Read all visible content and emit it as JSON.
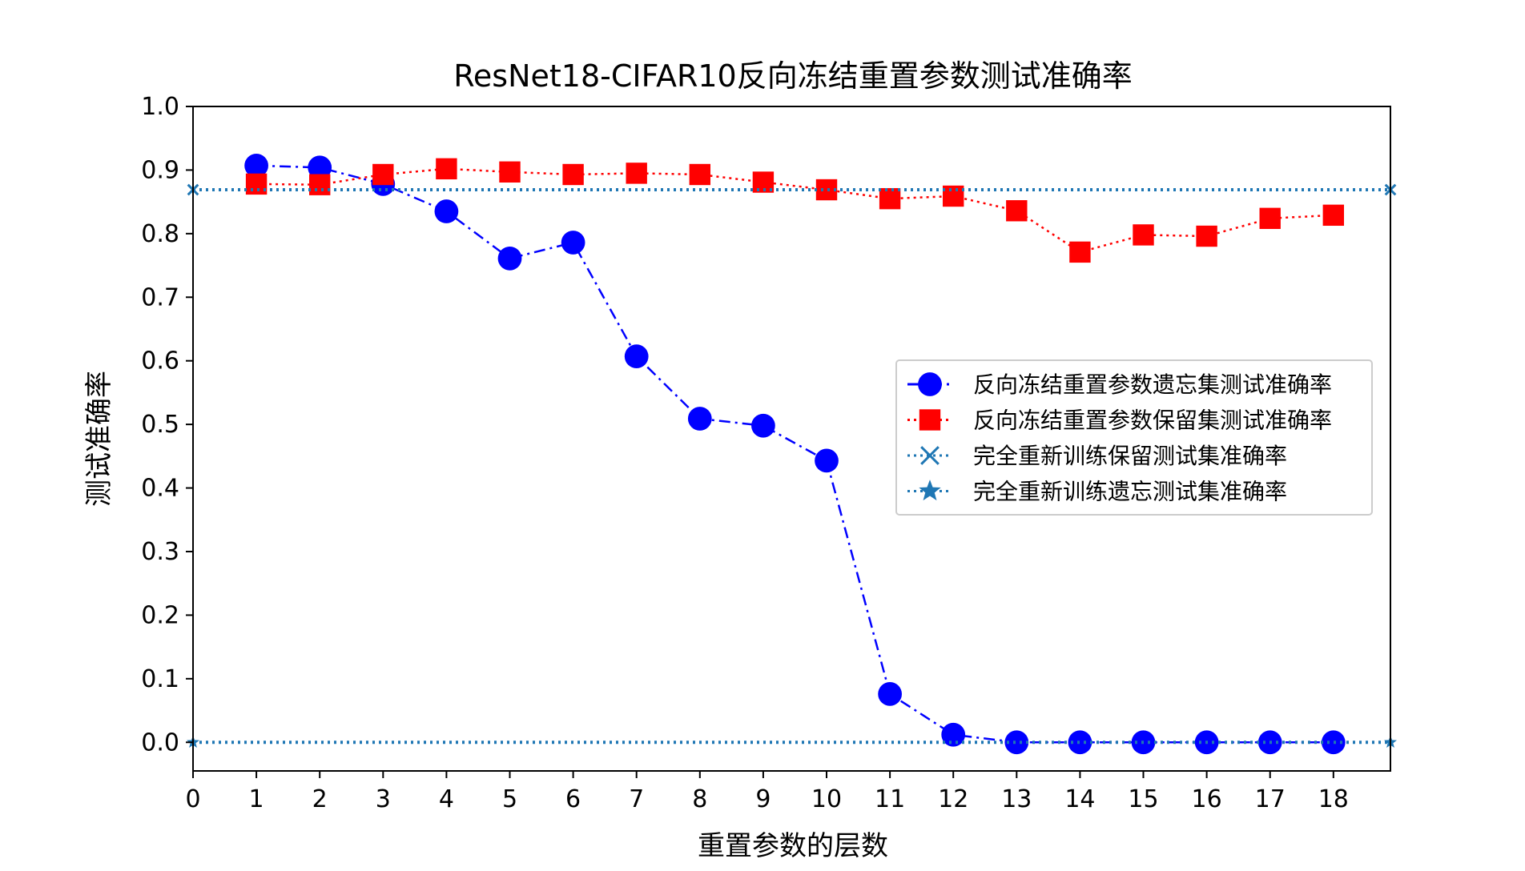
{
  "chart_data": {
    "type": "line",
    "title": "ResNet18-CIFAR10反向冻结重置参数测试准确率",
    "xlabel": "重置参数的层数",
    "ylabel": "测试准确率",
    "xlim": [
      0,
      18.9
    ],
    "ylim": [
      -0.045,
      1.0
    ],
    "x_ticks": [
      0,
      1,
      2,
      3,
      4,
      5,
      6,
      7,
      8,
      9,
      10,
      11,
      12,
      13,
      14,
      15,
      16,
      17,
      18
    ],
    "y_ticks": [
      0.0,
      0.1,
      0.2,
      0.3,
      0.4,
      0.5,
      0.6,
      0.7,
      0.8,
      0.9,
      1.0
    ],
    "y_tick_labels": [
      "0.0",
      "0.1",
      "0.2",
      "0.3",
      "0.4",
      "0.5",
      "0.6",
      "0.7",
      "0.8",
      "0.9",
      "1.0"
    ],
    "legend_position": "center-right",
    "grid": false,
    "series": [
      {
        "name": "反向冻结重置参数遗忘集测试准确率",
        "color": "#0000ff",
        "marker": "circle",
        "line_style": "dashdot",
        "x": [
          1,
          2,
          3,
          4,
          5,
          6,
          7,
          8,
          9,
          10,
          11,
          12,
          13,
          14,
          15,
          16,
          17,
          18
        ],
        "values": [
          0.907,
          0.904,
          0.878,
          0.835,
          0.761,
          0.786,
          0.607,
          0.509,
          0.498,
          0.443,
          0.076,
          0.012,
          0.0,
          0.0,
          0.0,
          0.0,
          0.0,
          0.0
        ]
      },
      {
        "name": "反向冻结重置参数保留集测试准确率",
        "color": "#ff0000",
        "marker": "square",
        "line_style": "dotted",
        "x": [
          1,
          2,
          3,
          4,
          5,
          6,
          7,
          8,
          9,
          10,
          11,
          12,
          13,
          14,
          15,
          16,
          17,
          18
        ],
        "values": [
          0.878,
          0.877,
          0.893,
          0.902,
          0.897,
          0.893,
          0.895,
          0.893,
          0.881,
          0.869,
          0.855,
          0.859,
          0.836,
          0.771,
          0.798,
          0.796,
          0.824,
          0.829
        ]
      },
      {
        "name": "完全重新训练保留测试集准确率",
        "color": "#1f77b4",
        "marker": "x",
        "line_style": "dotted",
        "x": [
          0,
          18.9
        ],
        "values": [
          0.869,
          0.869
        ]
      },
      {
        "name": "完全重新训练遗忘测试集准确率",
        "color": "#1f77b4",
        "marker": "star",
        "line_style": "dotted",
        "x": [
          0,
          18.9
        ],
        "values": [
          0.0,
          0.0
        ]
      }
    ]
  }
}
